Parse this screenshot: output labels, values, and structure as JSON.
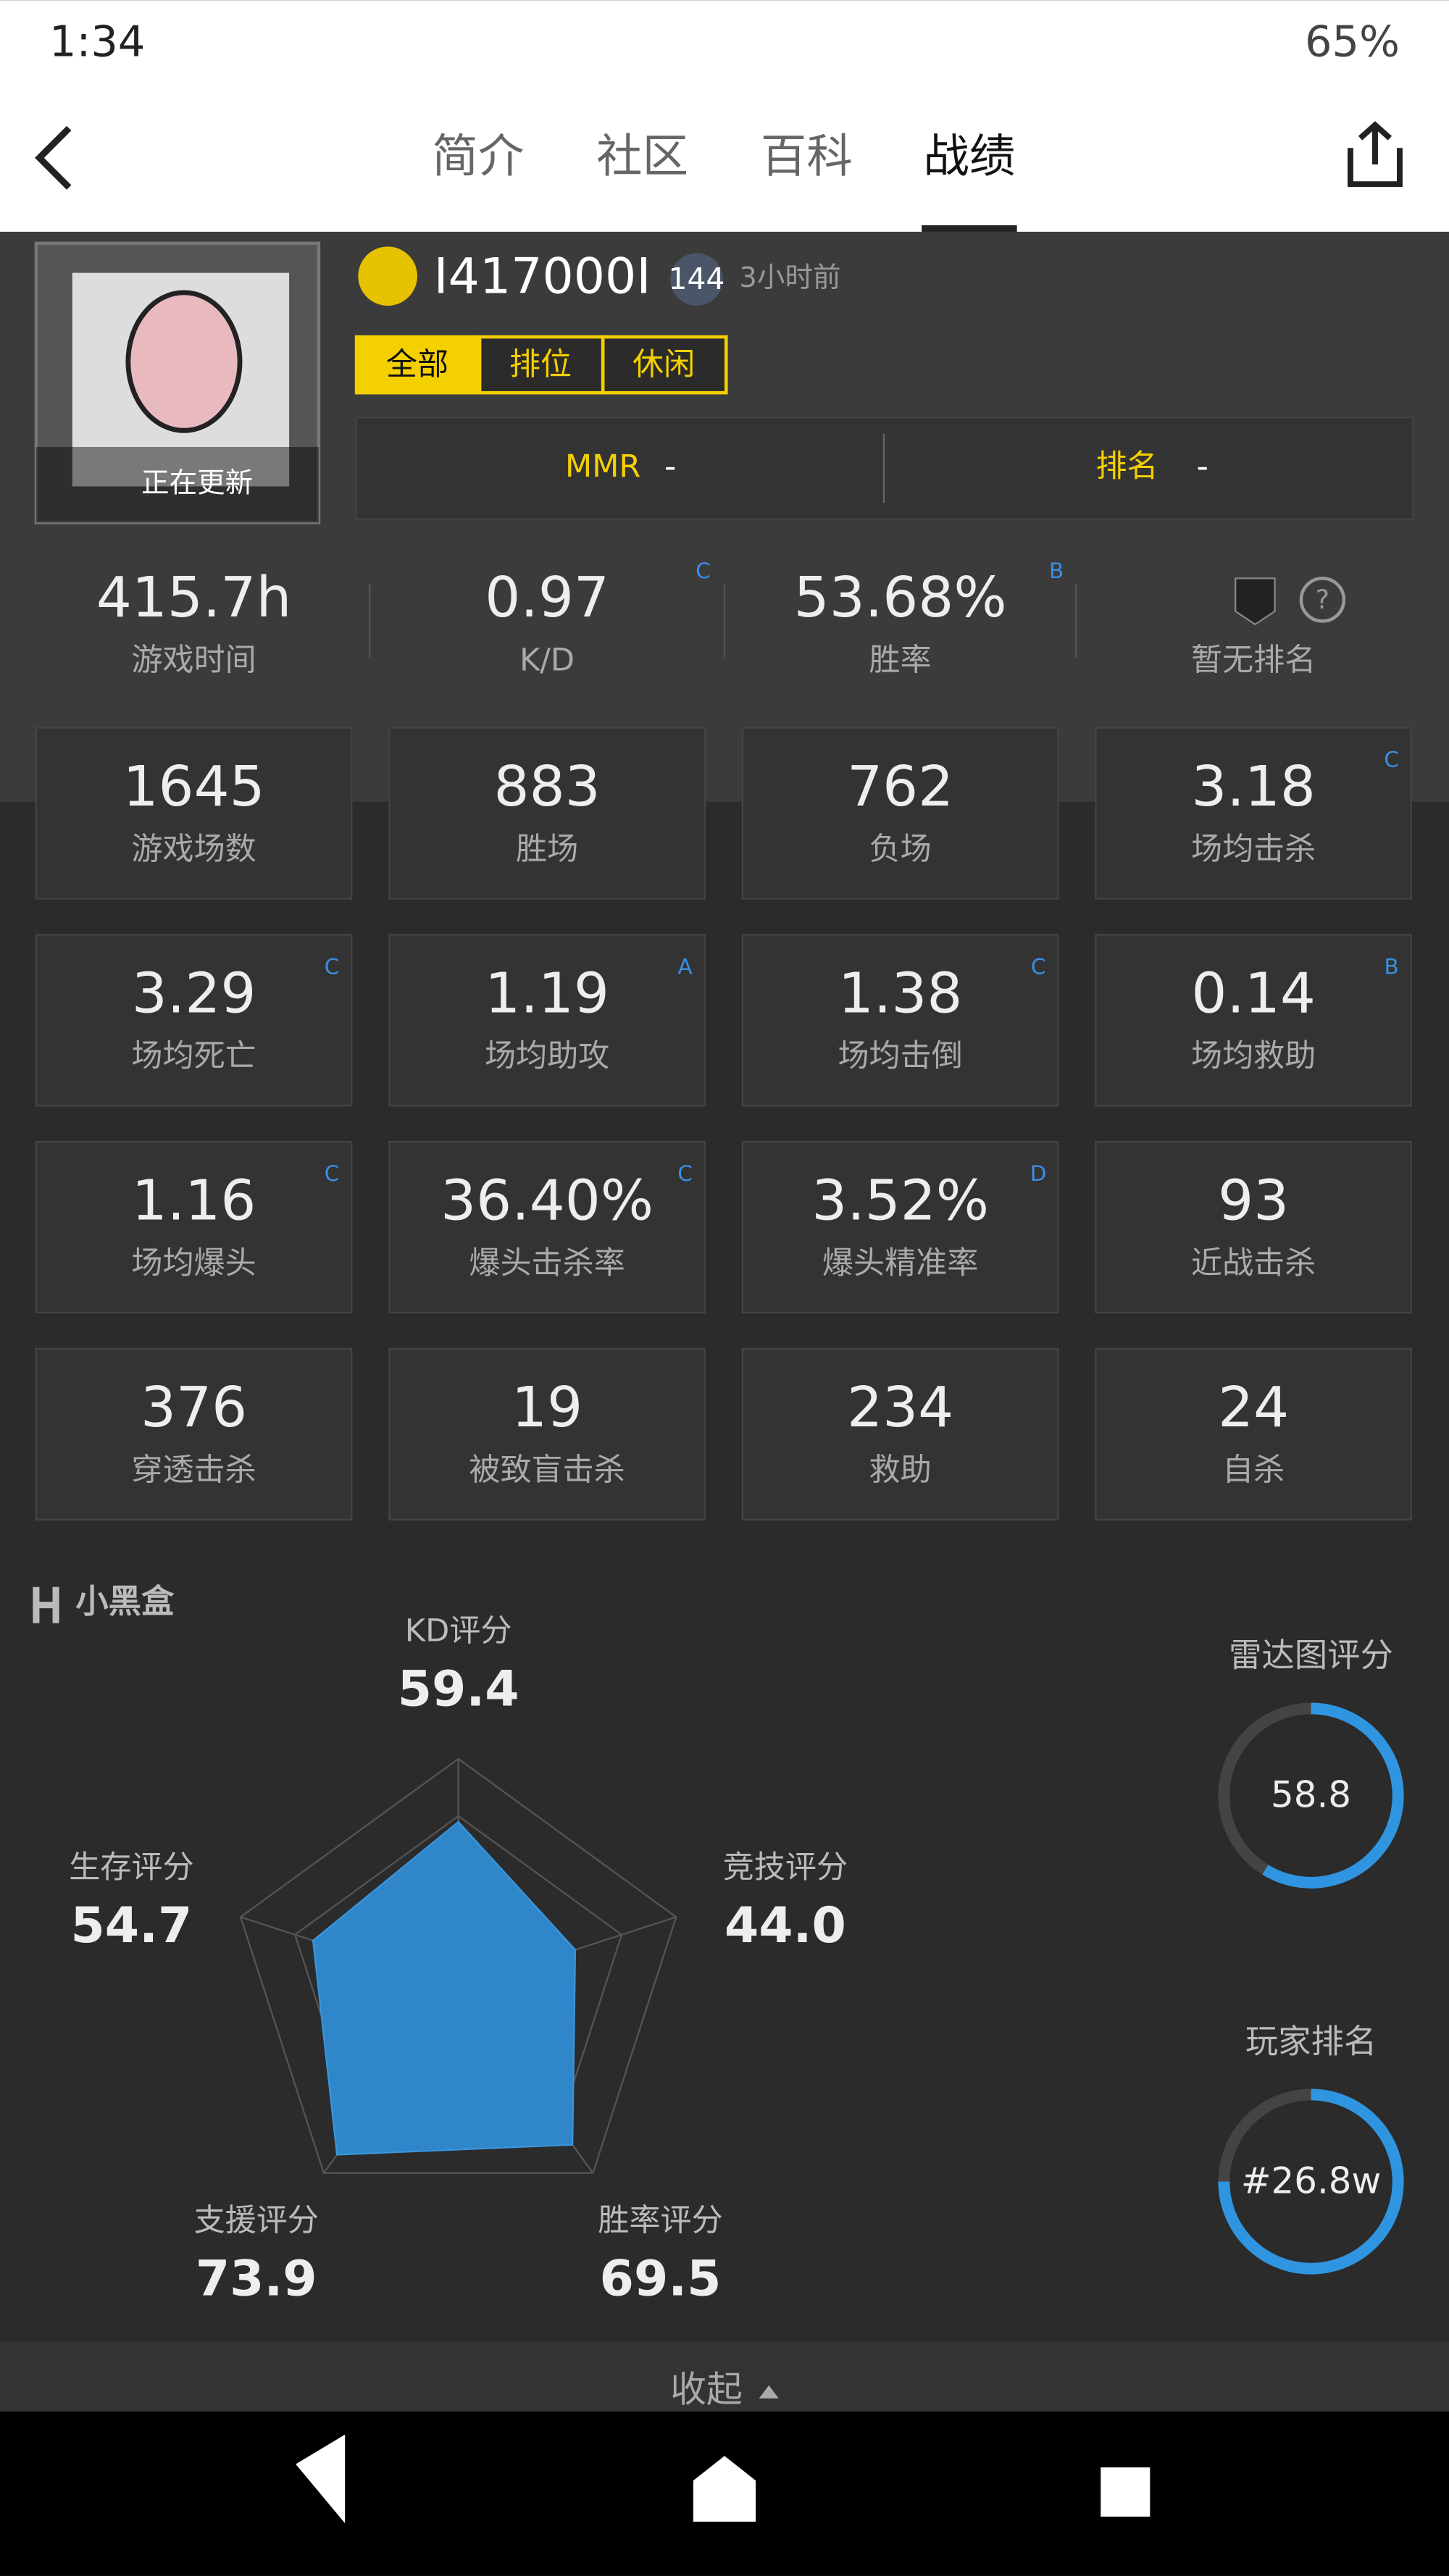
{
  "status": {
    "time": "1:34",
    "battery": "65%"
  },
  "tabs": [
    "简介",
    "社区",
    "百科",
    "战绩"
  ],
  "profile": {
    "name": "I417000I",
    "level": "144",
    "last_seen": "3小时前",
    "updating": "正在更新",
    "filters": [
      "全部",
      "排位",
      "休闲"
    ],
    "mmr_label": "MMR",
    "mmr_value": "-",
    "rank_label": "排名",
    "rank_value": "-"
  },
  "summary": [
    {
      "value": "415.7h",
      "label": "游戏时间"
    },
    {
      "value": "0.97",
      "label": "K/D",
      "grade": "C"
    },
    {
      "value": "53.68%",
      "label": "胜率",
      "grade": "B"
    }
  ],
  "no_rank": "暂无排名",
  "stats": [
    {
      "value": "1645",
      "label": "游戏场数"
    },
    {
      "value": "883",
      "label": "胜场"
    },
    {
      "value": "762",
      "label": "负场"
    },
    {
      "value": "3.18",
      "label": "场均击杀",
      "grade": "C"
    },
    {
      "value": "3.29",
      "label": "场均死亡",
      "grade": "C"
    },
    {
      "value": "1.19",
      "label": "场均助攻",
      "grade": "A"
    },
    {
      "value": "1.38",
      "label": "场均击倒",
      "grade": "C"
    },
    {
      "value": "0.14",
      "label": "场均救助",
      "grade": "B"
    },
    {
      "value": "1.16",
      "label": "场均爆头",
      "grade": "C"
    },
    {
      "value": "36.40%",
      "label": "爆头击杀率",
      "grade": "C"
    },
    {
      "value": "3.52%",
      "label": "爆头精准率",
      "grade": "D"
    },
    {
      "value": "93",
      "label": "近战击杀"
    },
    {
      "value": "376",
      "label": "穿透击杀"
    },
    {
      "value": "19",
      "label": "被致盲击杀"
    },
    {
      "value": "234",
      "label": "救助"
    },
    {
      "value": "24",
      "label": "自杀"
    }
  ],
  "brand": "小黑盒",
  "radar": [
    {
      "name": "KD评分",
      "score": {
        "value": 59.4,
        "label": "59.4"
      }
    },
    {
      "name": "竞技评分",
      "score": {
        "value": 44.0,
        "label": "44.0"
      }
    },
    {
      "name": "胜率评分",
      "score": {
        "value": 69.5,
        "label": "69.5"
      }
    },
    {
      "name": "支援评分",
      "score": {
        "value": 73.9,
        "label": "73.9"
      }
    },
    {
      "name": "生存评分",
      "score": {
        "value": 54.7,
        "label": "54.7"
      }
    }
  ],
  "rating_title": "雷达图评分",
  "rating": {
    "value": 58.8,
    "label": "58.8"
  },
  "player_rank_title": "玩家排名",
  "player_rank": "#26.8w",
  "collapse": "收起"
}
